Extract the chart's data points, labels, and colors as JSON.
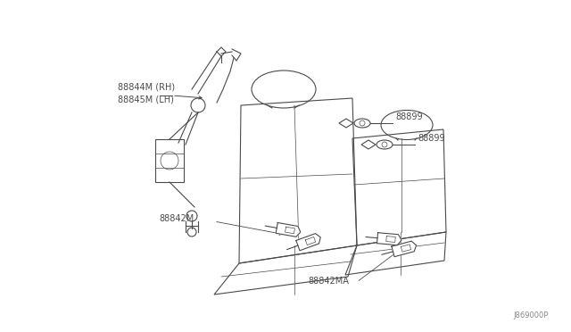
{
  "bg_color": "#ffffff",
  "line_color": "#4a4a4a",
  "label_color": "#4a4a4a",
  "fig_width": 6.4,
  "fig_height": 3.72,
  "dpi": 100,
  "watermark": "J869000P",
  "labels": {
    "rh_lh_1": "88844M (RH)",
    "rh_lh_2": "88845M (LH)",
    "buckle_left": "88842M",
    "buckle_right": "88842MA",
    "clip1": "88899",
    "clip2": "88899"
  }
}
